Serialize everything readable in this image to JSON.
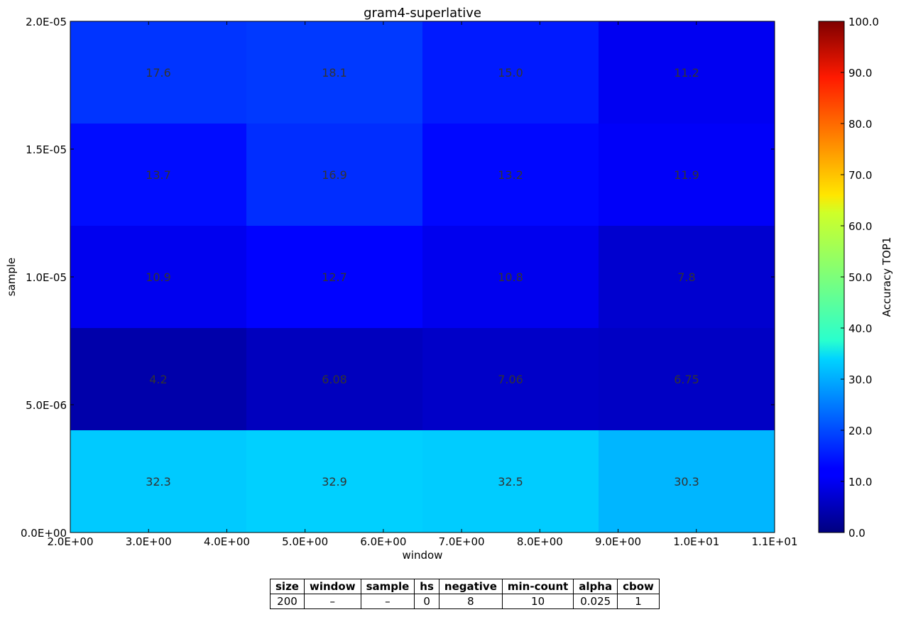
{
  "chart_data": {
    "type": "heatmap",
    "title": "gram4-superlative",
    "xlabel": "window",
    "ylabel": "sample",
    "colorbar_label": "Accuracy TOP1",
    "colormap": "jet",
    "value_range": [
      0,
      100
    ],
    "xlim": [
      2.0,
      11.0
    ],
    "ylim": [
      0.0,
      2e-05
    ],
    "x_edges": [
      2.0,
      4.25,
      6.5,
      8.75,
      11.0
    ],
    "y_edges": [
      0.0,
      4e-06,
      8e-06,
      1.2e-05,
      1.6e-05,
      2e-05
    ],
    "x_tick_labels": [
      "2.0E+00",
      "3.0E+00",
      "4.0E+00",
      "5.0E+00",
      "6.0E+00",
      "7.0E+00",
      "8.0E+00",
      "9.0E+00",
      "1.0E+01",
      "1.1E+01"
    ],
    "y_tick_labels": [
      "0.0E+00",
      "5.0E-06",
      "1.0E-05",
      "1.5E-05",
      "2.0E-05"
    ],
    "colorbar_tick_labels": [
      "0.0",
      "10.0",
      "20.0",
      "30.0",
      "40.0",
      "50.0",
      "60.0",
      "70.0",
      "80.0",
      "90.0",
      "100.0"
    ],
    "rows_top_to_bottom": [
      {
        "values": [
          17.6,
          18.1,
          15.0,
          11.2
        ],
        "labels": [
          "17.6",
          "18.1",
          "15.0",
          "11.2"
        ]
      },
      {
        "values": [
          13.7,
          16.9,
          13.2,
          11.9
        ],
        "labels": [
          "13.7",
          "16.9",
          "13.2",
          "11.9"
        ]
      },
      {
        "values": [
          10.9,
          12.7,
          10.8,
          7.8
        ],
        "labels": [
          "10.9",
          "12.7",
          "10.8",
          "7.8"
        ]
      },
      {
        "values": [
          4.2,
          6.08,
          7.06,
          6.75
        ],
        "labels": [
          "4.2",
          "6.08",
          "7.06",
          "6.75"
        ]
      },
      {
        "values": [
          32.3,
          32.9,
          32.5,
          30.3
        ],
        "labels": [
          "32.3",
          "32.9",
          "32.5",
          "30.3"
        ]
      }
    ]
  },
  "params_table": {
    "headers": [
      "size",
      "window",
      "sample",
      "hs",
      "negative",
      "min-count",
      "alpha",
      "cbow"
    ],
    "values": [
      "200",
      "–",
      "–",
      "0",
      "8",
      "10",
      "0.025",
      "1"
    ]
  }
}
